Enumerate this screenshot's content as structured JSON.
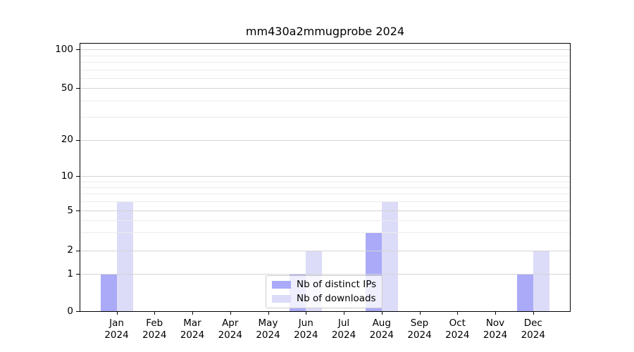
{
  "title": "mm430a2mmugprobe 2024",
  "chart_data": {
    "type": "bar",
    "title": "mm430a2mmugprobe 2024",
    "categories": [
      "Jan",
      "Feb",
      "Mar",
      "Apr",
      "May",
      "Jun",
      "Jul",
      "Aug",
      "Sep",
      "Oct",
      "Nov",
      "Dec"
    ],
    "category_year_label": "2024",
    "series": [
      {
        "name": "Nb of distinct IPs",
        "color": "#aaaaf8",
        "values": [
          1,
          0,
          0,
          0,
          0,
          1,
          0,
          3,
          0,
          0,
          0,
          1
        ]
      },
      {
        "name": "Nb of downloads",
        "color": "#dcdcf8",
        "values": [
          6,
          0,
          0,
          0,
          0,
          2,
          0,
          6,
          0,
          0,
          0,
          2
        ]
      }
    ],
    "xlabel": "",
    "ylabel": "",
    "yscale": "symlog",
    "ylim": [
      0,
      120
    ],
    "y_major_ticks": [
      0,
      1,
      2,
      5,
      10,
      20,
      50,
      100
    ],
    "y_minor_ticks": [
      3,
      4,
      6,
      7,
      8,
      9,
      30,
      40,
      60,
      70,
      80,
      90
    ],
    "grid": true,
    "legend_position": "lower center (inside axes)"
  }
}
